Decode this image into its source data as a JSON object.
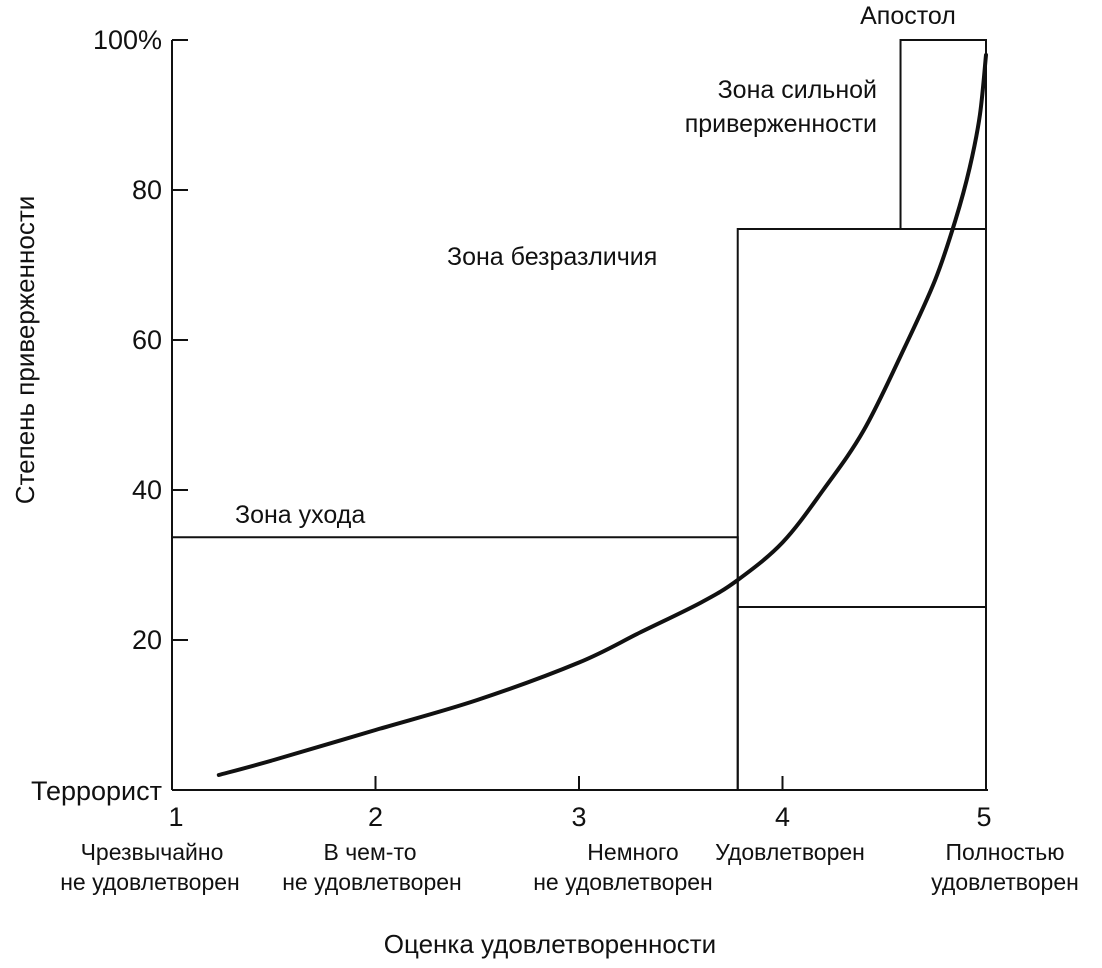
{
  "chart_data": {
    "type": "line",
    "title": "",
    "xlabel": "Оценка удовлетворенности",
    "ylabel": "Степень приверженности",
    "xlim": [
      1,
      5
    ],
    "ylim": [
      0,
      100
    ],
    "y_ticks": [
      "20",
      "40",
      "60",
      "80",
      "100%"
    ],
    "y_tick_values": [
      20,
      40,
      60,
      80,
      100
    ],
    "y_bottom_label": "Террорист",
    "y_top_label": "Апостол",
    "x_ticks": [
      {
        "value": 1,
        "number": "1",
        "line1": "Чрезвычайно",
        "line2": "не удовлетворен"
      },
      {
        "value": 2,
        "number": "2",
        "line1": "В чем-то",
        "line2": "не удовлетворен"
      },
      {
        "value": 3,
        "number": "3",
        "line1": "Немного",
        "line2": "не удовлетворен"
      },
      {
        "value": 4,
        "number": "4",
        "line1": "Удовлетворен",
        "line2": ""
      },
      {
        "value": 5,
        "number": "5",
        "line1": "Полностью",
        "line2": "удовлетворен"
      }
    ],
    "series": [
      {
        "x": [
          1.23,
          1.5,
          2.0,
          2.5,
          3.0,
          3.3,
          3.6,
          3.78,
          4.0,
          4.2,
          4.4,
          4.6,
          4.75,
          4.85,
          4.92,
          4.97,
          5.0
        ],
        "y": [
          2,
          4,
          8,
          12,
          17,
          21,
          25,
          28,
          33,
          40,
          48,
          59,
          68,
          76,
          83,
          90,
          98
        ]
      }
    ],
    "zones": [
      {
        "label": "Зона ухода",
        "x": [
          1,
          3.78
        ],
        "y": [
          0,
          33.7
        ]
      },
      {
        "label": "Зона безразличия",
        "x": [
          3.78,
          5
        ],
        "y": [
          0,
          74.8
        ]
      },
      {
        "label_lines": [
          "Зона сильной",
          "приверженности"
        ],
        "x": [
          4.58,
          5
        ],
        "y": [
          74.8,
          100
        ]
      }
    ],
    "extra_lines": [
      {
        "x": [
          3.78,
          5
        ],
        "y": 24.4
      }
    ],
    "grid": false,
    "legend": "none"
  }
}
